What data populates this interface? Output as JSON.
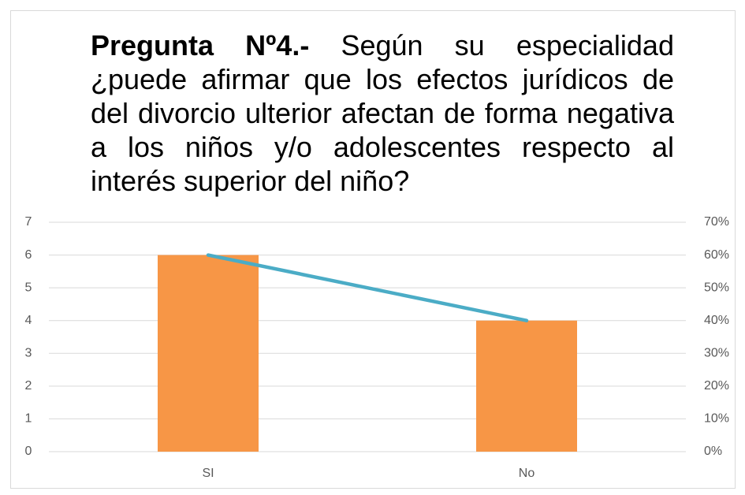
{
  "chart_data": {
    "type": "bar-line",
    "title": {
      "lead": "Pregunta Nº4.-",
      "text": "Según su especialidad ¿puede afirmar que los efectos jurídicos de del divorcio ulterior afectan de forma negativa a los niños y/o adolescentes respecto al interés superior del niño?"
    },
    "categories": [
      "SI",
      "No"
    ],
    "series": [
      {
        "type": "bar",
        "color": "#f79646",
        "values": [
          6,
          4
        ]
      },
      {
        "type": "line",
        "axis": "y2",
        "color": "#4bacc6",
        "values": [
          60,
          40
        ]
      }
    ],
    "ylim": [
      0,
      7
    ],
    "yticks": [
      0,
      1,
      2,
      3,
      4,
      5,
      6,
      7
    ],
    "y2lim": [
      0,
      70
    ],
    "y2ticks": [
      {
        "value": 0,
        "label": "0%"
      },
      {
        "value": 10,
        "label": "10%"
      },
      {
        "value": 20,
        "label": "20%"
      },
      {
        "value": 30,
        "label": "30%"
      },
      {
        "value": 40,
        "label": "40%"
      },
      {
        "value": 50,
        "label": "50%"
      },
      {
        "value": 60,
        "label": "60%"
      },
      {
        "value": 70,
        "label": "70%"
      }
    ],
    "grid": true
  }
}
